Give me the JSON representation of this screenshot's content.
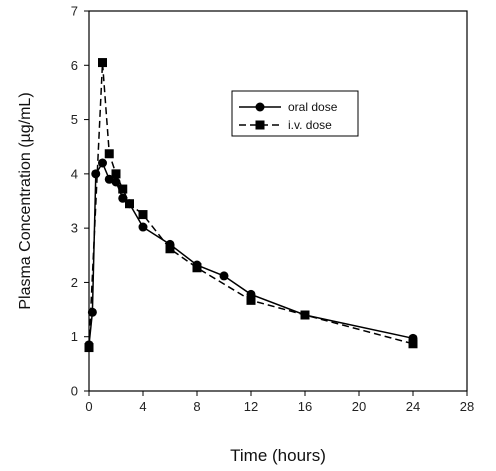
{
  "chart_data": {
    "type": "line",
    "xlabel": "Time (hours)",
    "ylabel": "Plasma Concentration (µg/mL)",
    "xlim": [
      0,
      28
    ],
    "ylim": [
      0,
      7
    ],
    "xticks": [
      0,
      4,
      8,
      12,
      16,
      20,
      24,
      28
    ],
    "yticks": [
      0,
      1,
      2,
      3,
      4,
      5,
      6,
      7
    ],
    "grid": false,
    "legend_position": "top-right",
    "series": [
      {
        "name": "oral dose",
        "marker": "circle",
        "line_style": "solid",
        "color": "#000000",
        "x": [
          0,
          0.25,
          0.5,
          1,
          1.5,
          2,
          2.5,
          3,
          4,
          6,
          8,
          10,
          12,
          16,
          24
        ],
        "y": [
          0.85,
          1.45,
          4.0,
          4.2,
          3.9,
          3.85,
          3.55,
          3.45,
          3.02,
          2.7,
          2.32,
          2.12,
          1.78,
          1.4,
          0.97
        ]
      },
      {
        "name": "i.v. dose",
        "marker": "square",
        "line_style": "dashed",
        "color": "#000000",
        "x": [
          0,
          1,
          1.5,
          2,
          2.5,
          3,
          4,
          6,
          8,
          12,
          16,
          24
        ],
        "y": [
          0.8,
          6.05,
          4.37,
          4.0,
          3.72,
          3.45,
          3.25,
          2.62,
          2.27,
          1.67,
          1.4,
          0.87
        ]
      }
    ]
  }
}
